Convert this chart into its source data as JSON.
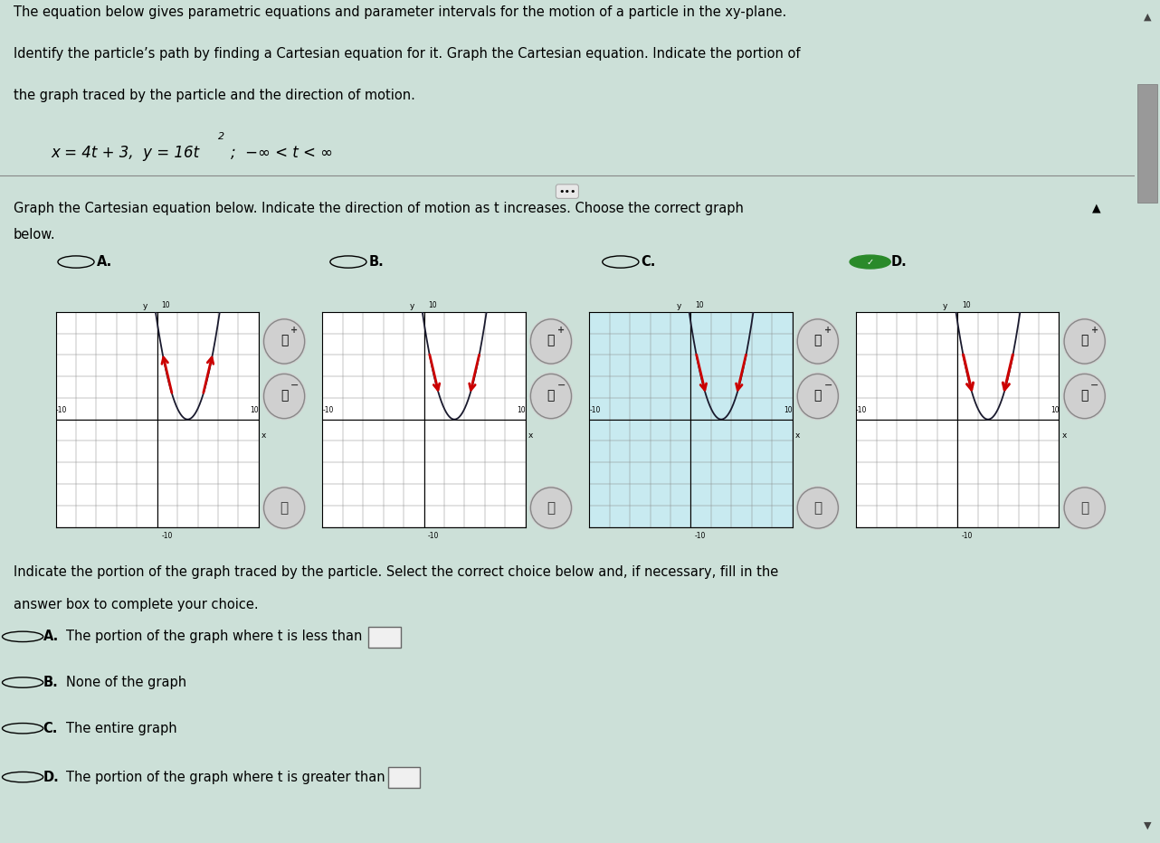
{
  "line1": "The equation below gives parametric equations and parameter intervals for the motion of a particle in the xy-plane.",
  "line2": "Identify the particle’s path by finding a Cartesian equation for it. Graph the Cartesian equation. Indicate the portion of",
  "line3": "the graph traced by the particle and the direction of motion.",
  "eq_part1": "x = 4t + 3,  y = 16t",
  "eq_super": "2",
  "eq_part2": ";  −∞ < t < ∞",
  "sec2_line1": "Graph the Cartesian equation below. Indicate the direction of motion as t increases. Choose the correct graph",
  "sec2_line2": "below.",
  "choice_labels": [
    "A.",
    "B.",
    "C.",
    "D."
  ],
  "correct_choice_idx": 3,
  "portion_line1": "Indicate the portion of the graph traced by the particle. Select the correct choice below and, if necessary, fill in the",
  "portion_line2": "answer box to complete your choice.",
  "portion_A": "The portion of the graph where t is less than",
  "portion_B": "None of the graph",
  "portion_C": "The entire graph",
  "portion_D": "The portion of the graph where t is greater than",
  "bg_top": "#cce0d8",
  "bg_mid": "#d4e4de",
  "bg_bot": "#ccddd6",
  "graph_bg_normal": "#ffffff",
  "graph_bg_blue": "#c8eaf0",
  "grid_color": "#888888",
  "curve_color": "#1a1a2e",
  "arrow_color": "#cc0000",
  "checkmark_color": "#2a8a2a",
  "axis_range": [
    -10,
    10
  ],
  "font_size": 10.5,
  "eq_font_size": 12
}
